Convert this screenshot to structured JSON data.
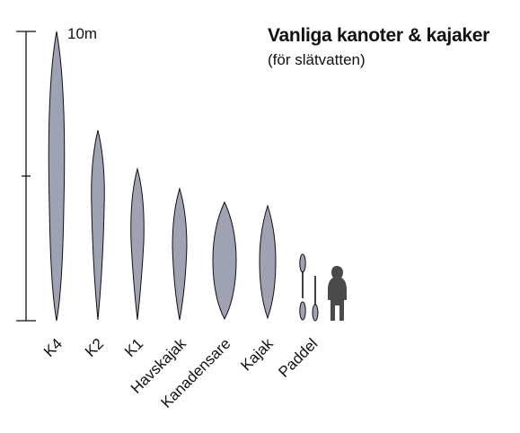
{
  "title": "Vanliga kanoter & kajaker",
  "subtitle": "(för slätvatten)",
  "scale": {
    "label": "10m"
  },
  "colors": {
    "hull_fill": "#9fa2b2",
    "outline": "#111111",
    "silhouette": "#4a4a4a"
  },
  "boats": [
    {
      "label": "K4"
    },
    {
      "label": "K2"
    },
    {
      "label": "K1"
    },
    {
      "label": "Havskajak"
    },
    {
      "label": "Kanadensare"
    },
    {
      "label": "Kajak"
    },
    {
      "label": "Paddel"
    }
  ]
}
